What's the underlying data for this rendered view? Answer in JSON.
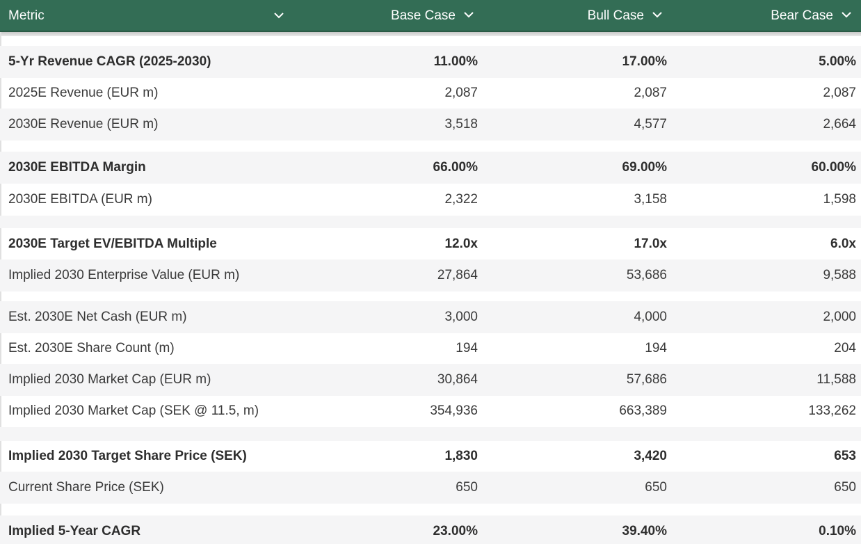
{
  "header": {
    "metric": "Metric",
    "base": "Base Case",
    "bull": "Bull Case",
    "bear": "Bear Case"
  },
  "rows": [
    {
      "metric": "5-Yr Revenue CAGR (2025-2030)",
      "base": "11.00%",
      "bull": "17.00%",
      "bear": "5.00%"
    },
    {
      "metric": "2025E Revenue (EUR m)",
      "base": "2,087",
      "bull": "2,087",
      "bear": "2,087"
    },
    {
      "metric": "2030E Revenue (EUR m)",
      "base": "3,518",
      "bull": "4,577",
      "bear": "2,664"
    },
    {
      "metric": "2030E EBITDA Margin",
      "base": "66.00%",
      "bull": "69.00%",
      "bear": "60.00%"
    },
    {
      "metric": "2030E EBITDA (EUR m)",
      "base": "2,322",
      "bull": "3,158",
      "bear": "1,598"
    },
    {
      "metric": "2030E Target EV/EBITDA Multiple",
      "base": "12.0x",
      "bull": "17.0x",
      "bear": "6.0x"
    },
    {
      "metric": "Implied 2030 Enterprise Value (EUR m)",
      "base": "27,864",
      "bull": "53,686",
      "bear": "9,588"
    },
    {
      "metric": "Est. 2030E Net Cash (EUR m)",
      "base": "3,000",
      "bull": "4,000",
      "bear": "2,000"
    },
    {
      "metric": "Est. 2030E Share Count (m)",
      "base": "194",
      "bull": "194",
      "bear": "204"
    },
    {
      "metric": "Implied 2030 Market Cap (EUR m)",
      "base": "30,864",
      "bull": "57,686",
      "bear": "11,588"
    },
    {
      "metric": "Implied 2030 Market Cap (SEK @ 11.5, m)",
      "base": "354,936",
      "bull": "663,389",
      "bear": "133,262"
    },
    {
      "metric": "Implied 2030 Target Share Price (SEK)",
      "base": "1,830",
      "bull": "3,420",
      "bear": "653"
    },
    {
      "metric": "Current Share Price (SEK)",
      "base": "650",
      "bull": "650",
      "bear": "650"
    },
    {
      "metric": "Implied 5-Year CAGR",
      "base": "23.00%",
      "bull": "39.40%",
      "bear": "0.10%"
    }
  ],
  "colors": {
    "header_bg": "#336d55",
    "header_text": "#ffffff",
    "alt_row_bg": "#f5f5f6"
  },
  "icons": {
    "sort": "chevron-down-icon"
  }
}
